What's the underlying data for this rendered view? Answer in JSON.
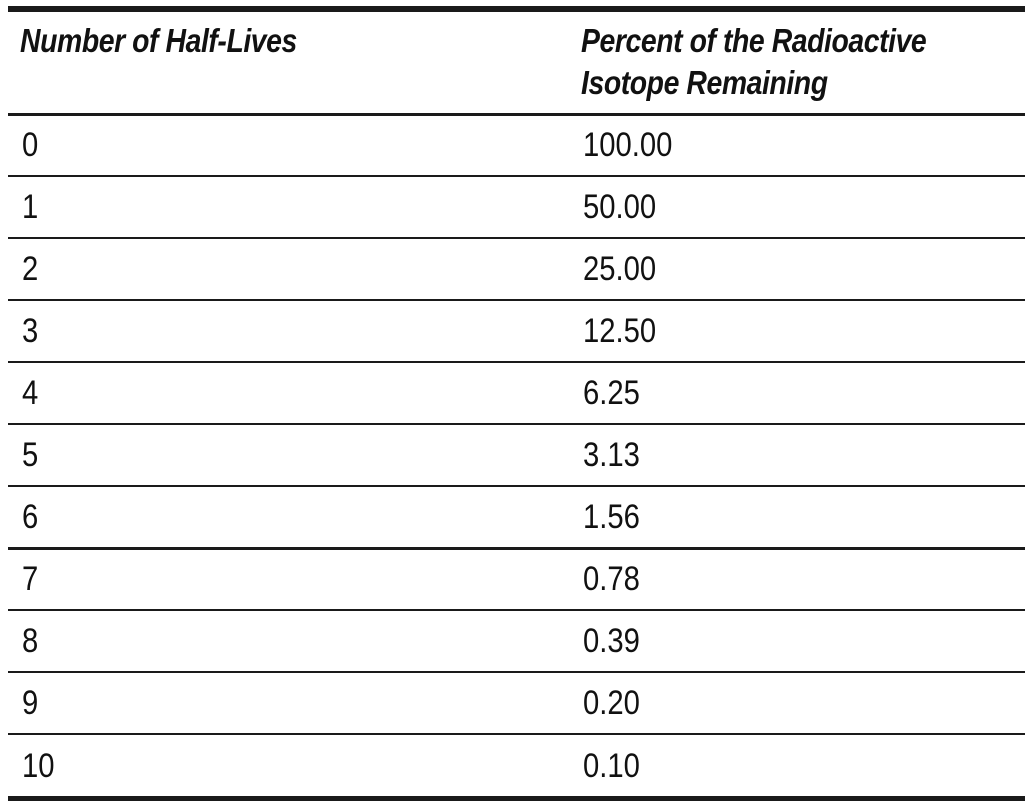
{
  "table": {
    "headers": [
      "Number of Half-Lives",
      [
        "Percent of the Radioactive",
        "Isotope Remaining"
      ]
    ],
    "rows": [
      [
        "0",
        "100.00"
      ],
      [
        "1",
        "50.00"
      ],
      [
        "2",
        "25.00"
      ],
      [
        "3",
        "12.50"
      ],
      [
        "4",
        "6.25"
      ],
      [
        "5",
        "3.13"
      ],
      [
        "6",
        "1.56"
      ],
      [
        "7",
        "0.78"
      ],
      [
        "8",
        "0.39"
      ],
      [
        "9",
        "0.20"
      ],
      [
        "10",
        "0.10"
      ]
    ]
  }
}
